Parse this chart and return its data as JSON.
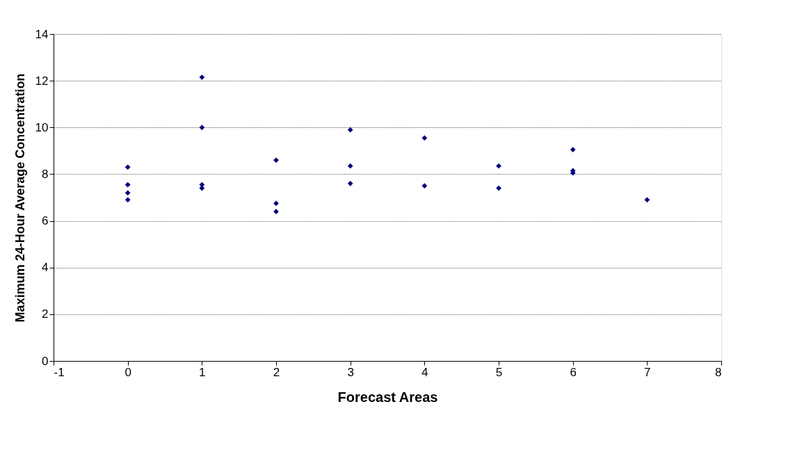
{
  "chart_data": {
    "type": "scatter",
    "xlabel": "Forecast Areas",
    "ylabel": "Maximum 24-Hour Average Concentration",
    "x": [
      0,
      0,
      0,
      0,
      1,
      1,
      1,
      1,
      2,
      2,
      2,
      3,
      3,
      3,
      4,
      4,
      5,
      5,
      6,
      6,
      6,
      7
    ],
    "series": [
      {
        "color": "#000080",
        "values": [
          8.3,
          7.55,
          7.2,
          6.9,
          12.15,
          10.0,
          7.55,
          7.4,
          8.6,
          6.75,
          6.4,
          9.9,
          8.35,
          7.6,
          9.55,
          7.5,
          8.35,
          7.4,
          9.05,
          8.15,
          8.05,
          6.9
        ]
      }
    ],
    "xlim": [
      -1,
      8
    ],
    "xticks": [
      -1,
      0,
      1,
      2,
      3,
      4,
      5,
      6,
      7,
      8
    ],
    "ylim": [
      0,
      14
    ],
    "yticks": [
      0,
      2,
      4,
      6,
      8,
      10,
      12,
      14
    ],
    "grid": "y",
    "marker": "diamond"
  }
}
